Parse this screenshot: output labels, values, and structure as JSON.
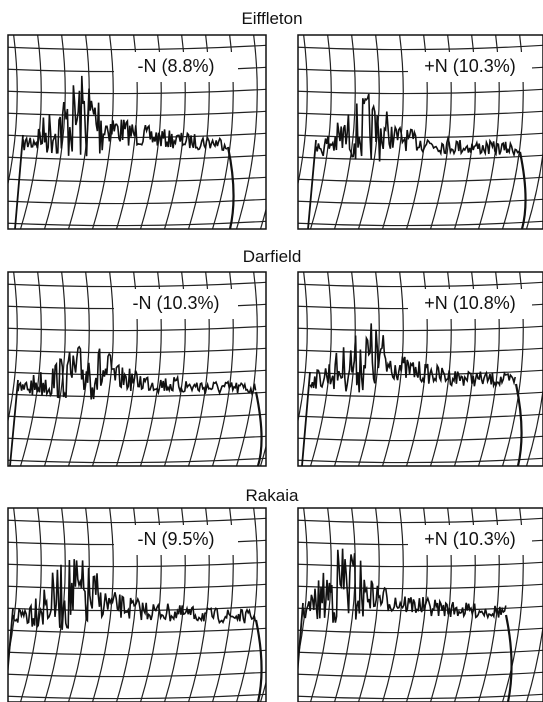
{
  "sections": [
    {
      "title": "Eiffleton",
      "panels": [
        {
          "label": "-N  (8.8%)"
        },
        {
          "label": "+N  (10.3%)"
        }
      ]
    },
    {
      "title": "Darfield",
      "panels": [
        {
          "label": "-N  (10.3%)"
        },
        {
          "label": "+N  (10.8%)"
        }
      ]
    },
    {
      "title": "Rakaia",
      "panels": [
        {
          "label": "-N  (9.5%)"
        },
        {
          "label": "+N  (10.3%)"
        }
      ]
    }
  ]
}
